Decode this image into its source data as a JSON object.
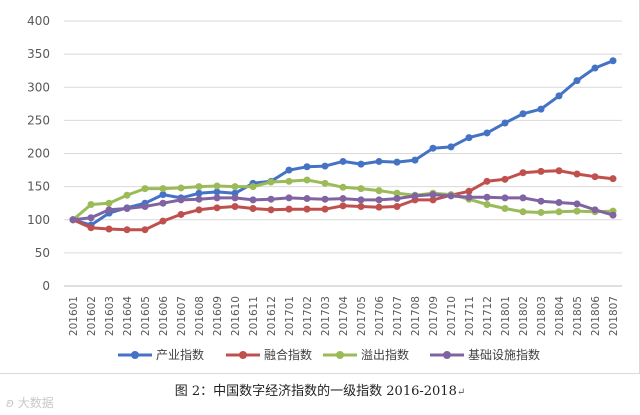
{
  "chart_data": {
    "type": "line",
    "title": "",
    "xlabel": "",
    "ylabel": "",
    "ylim": [
      0,
      400
    ],
    "yticks": [
      0,
      50,
      100,
      150,
      200,
      250,
      300,
      350,
      400
    ],
    "grid": "horizontal",
    "legend": "bottom",
    "categories": [
      "201601",
      "201602",
      "201603",
      "201604",
      "201605",
      "201606",
      "201607",
      "201608",
      "201609",
      "201610",
      "201611",
      "201612",
      "201701",
      "201702",
      "201703",
      "201704",
      "201705",
      "201706",
      "201707",
      "201708",
      "201709",
      "201710",
      "201711",
      "201712",
      "201801",
      "201802",
      "201803",
      "201804",
      "201805",
      "201806",
      "201807"
    ],
    "series": [
      {
        "name": "产业指数",
        "color": "#4472c4",
        "values": [
          100,
          92,
          110,
          118,
          125,
          138,
          133,
          140,
          142,
          140,
          155,
          158,
          175,
          180,
          181,
          188,
          184,
          188,
          187,
          190,
          208,
          210,
          224,
          231,
          246,
          260,
          267,
          287,
          310,
          329,
          340
        ]
      },
      {
        "name": "融合指数",
        "color": "#c0504d",
        "values": [
          100,
          88,
          86,
          85,
          85,
          98,
          108,
          115,
          118,
          120,
          117,
          115,
          116,
          116,
          116,
          121,
          120,
          119,
          120,
          130,
          130,
          137,
          143,
          158,
          161,
          171,
          173,
          174,
          169,
          165,
          162
        ]
      },
      {
        "name": "溢出指数",
        "color": "#9bbb59",
        "values": [
          100,
          123,
          125,
          137,
          147,
          147,
          148,
          150,
          151,
          150,
          150,
          157,
          158,
          160,
          155,
          149,
          147,
          144,
          140,
          137,
          140,
          138,
          131,
          123,
          117,
          112,
          111,
          112,
          113,
          112,
          113
        ]
      },
      {
        "name": "基础设施指数",
        "color": "#8064a2",
        "values": [
          100,
          103,
          115,
          117,
          120,
          125,
          130,
          131,
          133,
          133,
          130,
          131,
          133,
          132,
          131,
          132,
          130,
          130,
          132,
          136,
          138,
          136,
          134,
          134,
          133,
          133,
          128,
          126,
          124,
          115,
          107
        ]
      }
    ]
  },
  "caption": "图 2：中国数字经济指数的一级指数 2016-2018",
  "watermark": "大数据"
}
